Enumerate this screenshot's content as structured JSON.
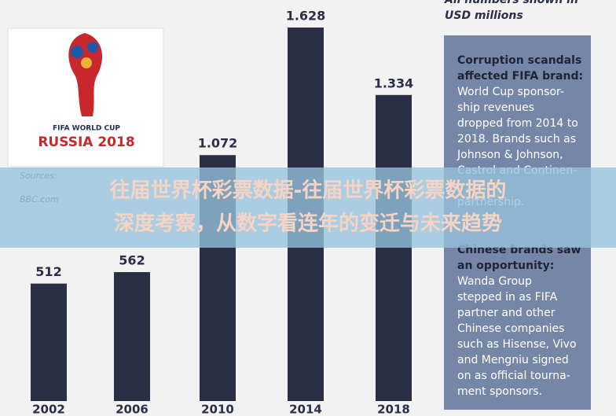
{
  "header": {
    "note_lines": [
      "All numbers shown in",
      "USD millions"
    ]
  },
  "logo": {
    "line1": "FIFA WORLD CUP",
    "line2": "RUSSIA 2018"
  },
  "sources": {
    "lines": [
      "Sources:",
      "BBC.com"
    ]
  },
  "chart_data": {
    "type": "bar",
    "categories": [
      "2002",
      "2006",
      "2010",
      "2014",
      "2018"
    ],
    "values": [
      512,
      562,
      1072,
      1628,
      1334
    ],
    "value_labels": [
      "512",
      "562",
      "1.072",
      "1.628",
      "1.334"
    ],
    "color": "#2b2f45"
  },
  "sidebar": {
    "sections": [
      {
        "heading": [
          "Corruption scandals",
          "affected FIFA brand:"
        ],
        "body": [
          "World Cup sponsor-",
          "ship revenues",
          "dropped from 2014 to",
          "2018. Brands such as",
          "Johnson & Johnson,",
          "Castrol and Continen-",
          "partnership."
        ]
      },
      {
        "heading": [
          "Chinese brands saw",
          "an opportunity:"
        ],
        "body": [
          "Wanda Group",
          "stepped in as FIFA",
          "partner and other",
          "Chinese companies",
          "such as Hisense, Vivo",
          "and Mengniu signed",
          "on as official tourna-",
          "ment sponsors."
        ]
      }
    ]
  },
  "banner": {
    "lines": [
      "往届世界杯彩票数据-往届世界杯彩票数据的",
      "深度考察，从数字看连年的变迁与未来趋势"
    ]
  }
}
